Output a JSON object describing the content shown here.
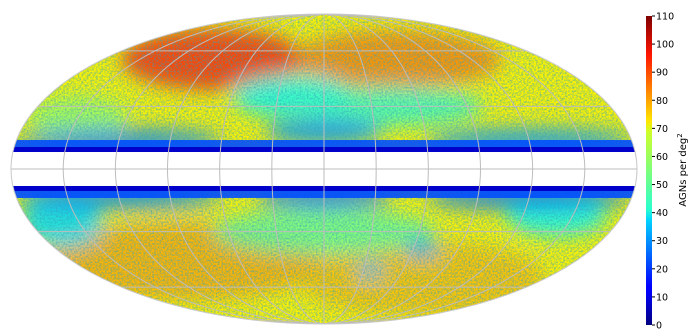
{
  "chart_data": {
    "type": "heatmap",
    "projection": "mollweide",
    "title": "",
    "colormap": "jet",
    "grid": true,
    "colorbar": {
      "placement": "right",
      "label_main": "AGNs per deg",
      "label_sup": "2",
      "vmin": 0,
      "vmax": 110,
      "ticks": [
        0,
        10,
        20,
        30,
        40,
        50,
        60,
        70,
        80,
        90,
        100,
        110
      ],
      "tick_labels": [
        "0",
        "10",
        "20",
        "30",
        "40",
        "50",
        "60",
        "70",
        "80",
        "90",
        "100",
        "110"
      ]
    },
    "masked_band": {
      "description_value": "galactic plane excluded",
      "latitude_range_deg": [
        -8,
        8
      ]
    },
    "density_levels": {
      "plane_edge": 12,
      "north_high_lat": 88,
      "south_high_lat": 78,
      "mid_lat": 48
    }
  }
}
